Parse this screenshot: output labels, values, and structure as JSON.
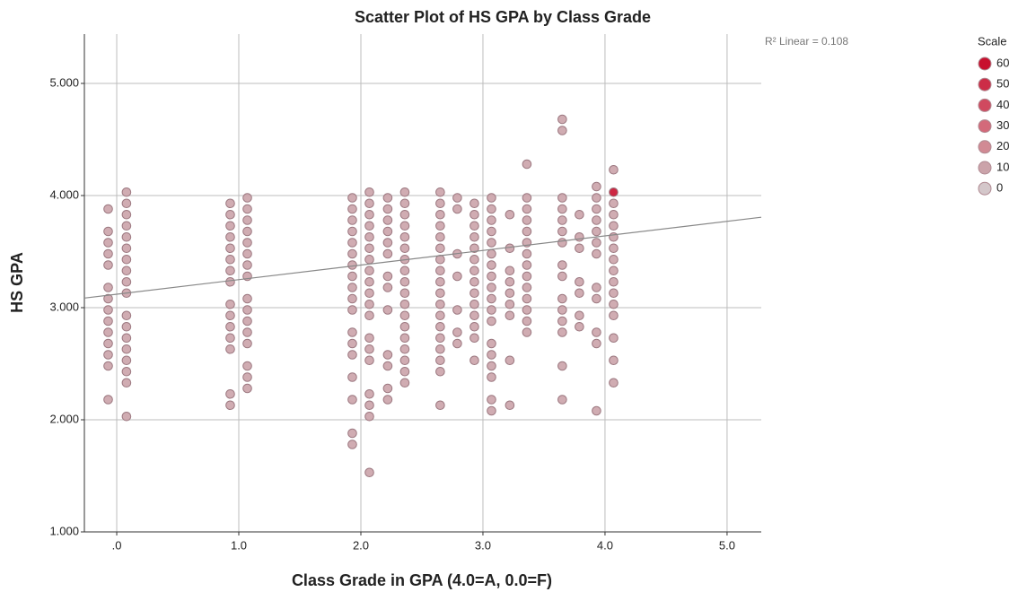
{
  "chart_data": {
    "type": "scatter",
    "title": "Scatter Plot of HS GPA by Class Grade",
    "x_label": "Class Grade in GPA (4.0=A, 0.0=F)",
    "y_label": "HS GPA",
    "annotation": "R² Linear = 0.108",
    "fit": {
      "intercept": 3.12,
      "slope": 0.13
    },
    "xlim": [
      -0.265,
      5.28
    ],
    "ylim": [
      1,
      5.44
    ],
    "xticks": [
      {
        "value": 0,
        "label": ".0"
      },
      {
        "value": 1,
        "label": "1.0"
      },
      {
        "value": 2,
        "label": "2.0"
      },
      {
        "value": 3,
        "label": "3.0"
      },
      {
        "value": 4,
        "label": "4.0"
      },
      {
        "value": 5,
        "label": "5.0"
      }
    ],
    "yticks": [
      {
        "value": 1,
        "label": "1.000"
      },
      {
        "value": 2,
        "label": "2.000"
      },
      {
        "value": 3,
        "label": "3.000"
      },
      {
        "value": 4,
        "label": "4.000"
      },
      {
        "value": 5,
        "label": "5.000"
      }
    ],
    "grid": true,
    "legend": {
      "title": "Scale",
      "items": [
        {
          "label": 60,
          "color": "#c8102e"
        },
        {
          "label": 50,
          "color": "#cc2d47"
        },
        {
          "label": 40,
          "color": "#d0495f"
        },
        {
          "label": 30,
          "color": "#d36a7a"
        },
        {
          "label": 20,
          "color": "#d18a94"
        },
        {
          "label": 10,
          "color": "#cba3aa"
        },
        {
          "label": 0,
          "color": "#d4c7ca"
        }
      ]
    },
    "points": [
      {
        "x": -0.07,
        "scale": 10,
        "y": [
          3.88,
          3.68,
          3.58,
          3.48,
          3.38,
          3.18,
          3.08,
          2.98,
          2.88,
          2.78,
          2.68,
          2.58,
          2.48,
          2.18
        ]
      },
      {
        "x": 0.08,
        "scale": 10,
        "y": [
          4.03,
          3.93,
          3.83,
          3.73,
          3.63,
          3.53,
          3.43,
          3.33,
          3.23,
          3.13,
          2.93,
          2.83,
          2.73,
          2.63,
          2.53,
          2.43,
          2.33,
          2.03
        ]
      },
      {
        "x": 0.93,
        "scale": 10,
        "y": [
          3.93,
          3.83,
          3.73,
          3.63,
          3.53,
          3.43,
          3.33,
          3.23,
          3.03,
          2.93,
          2.83,
          2.73,
          2.63,
          2.23,
          2.13
        ]
      },
      {
        "x": 1.07,
        "scale": 10,
        "y": [
          3.98,
          3.88,
          3.78,
          3.68,
          3.58,
          3.48,
          3.38,
          3.28,
          3.08,
          2.98,
          2.88,
          2.78,
          2.68,
          2.48,
          2.38,
          2.28
        ]
      },
      {
        "x": 1.93,
        "scale": 10,
        "y": [
          3.98,
          3.88,
          3.78,
          3.68,
          3.58,
          3.48,
          3.38,
          3.28,
          3.18,
          3.08,
          2.98,
          2.78,
          2.68,
          2.58,
          2.38,
          2.18,
          1.88,
          1.78
        ]
      },
      {
        "x": 2.07,
        "scale": 10,
        "y": [
          4.03,
          3.93,
          3.83,
          3.73,
          3.63,
          3.53,
          3.43,
          3.33,
          3.23,
          3.13,
          3.03,
          2.93,
          2.73,
          2.63,
          2.53,
          2.23,
          2.13,
          2.03,
          1.53
        ]
      },
      {
        "x": 2.22,
        "scale": 10,
        "y": [
          3.98,
          3.88,
          3.78,
          3.68,
          3.58,
          3.48,
          3.28,
          3.18,
          2.98,
          2.58,
          2.48,
          2.28,
          2.18
        ]
      },
      {
        "x": 2.36,
        "scale": 10,
        "y": [
          4.03,
          3.93,
          3.83,
          3.73,
          3.63,
          3.53,
          3.43,
          3.33,
          3.23,
          3.13,
          3.03,
          2.93,
          2.83,
          2.73,
          2.63,
          2.53,
          2.43,
          2.33
        ]
      },
      {
        "x": 2.65,
        "scale": 10,
        "y": [
          4.03,
          3.93,
          3.83,
          3.73,
          3.63,
          3.53,
          3.43,
          3.33,
          3.23,
          3.13,
          3.03,
          2.93,
          2.83,
          2.73,
          2.63,
          2.53,
          2.43,
          2.13
        ]
      },
      {
        "x": 2.79,
        "scale": 10,
        "y": [
          3.98,
          3.88,
          3.48,
          3.28,
          2.98,
          2.78,
          2.68
        ]
      },
      {
        "x": 2.93,
        "scale": 10,
        "y": [
          3.93,
          3.83,
          3.73,
          3.63,
          3.53,
          3.43,
          3.33,
          3.23,
          3.13,
          3.03,
          2.93,
          2.83,
          2.73,
          2.53
        ]
      },
      {
        "x": 3.07,
        "scale": 10,
        "y": [
          3.98,
          3.88,
          3.78,
          3.68,
          3.58,
          3.48,
          3.38,
          3.28,
          3.18,
          3.08,
          2.98,
          2.88,
          2.68,
          2.58,
          2.48,
          2.38,
          2.18,
          2.08
        ]
      },
      {
        "x": 3.22,
        "scale": 10,
        "y": [
          3.83,
          3.53,
          3.33,
          3.23,
          3.13,
          3.03,
          2.93,
          2.53,
          2.13
        ]
      },
      {
        "x": 3.36,
        "scale": 10,
        "y": [
          4.28,
          3.98,
          3.88,
          3.78,
          3.68,
          3.58,
          3.48,
          3.38,
          3.28,
          3.18,
          3.08,
          2.98,
          2.88,
          2.78
        ]
      },
      {
        "x": 3.65,
        "scale": 10,
        "y": [
          4.68,
          4.58,
          3.98,
          3.88,
          3.78,
          3.68,
          3.58,
          3.38,
          3.28,
          3.08,
          2.98,
          2.88,
          2.78,
          2.48,
          2.18
        ]
      },
      {
        "x": 3.79,
        "scale": 10,
        "y": [
          3.83,
          3.63,
          3.53,
          3.23,
          3.13,
          2.93,
          2.83
        ]
      },
      {
        "x": 3.93,
        "scale": 10,
        "y": [
          4.08,
          3.98,
          3.88,
          3.78,
          3.68,
          3.58,
          3.48,
          3.18,
          3.08,
          2.78,
          2.68,
          2.08
        ]
      },
      {
        "x": 4.07,
        "scale": 10,
        "y": [
          4.23,
          3.93,
          3.83,
          3.73,
          3.63,
          3.53,
          3.43,
          3.33,
          3.23,
          3.13,
          3.03,
          2.93,
          2.73,
          2.53,
          2.33
        ]
      },
      {
        "x": 4.07,
        "scale": 60,
        "y": [
          4.03
        ]
      }
    ]
  }
}
